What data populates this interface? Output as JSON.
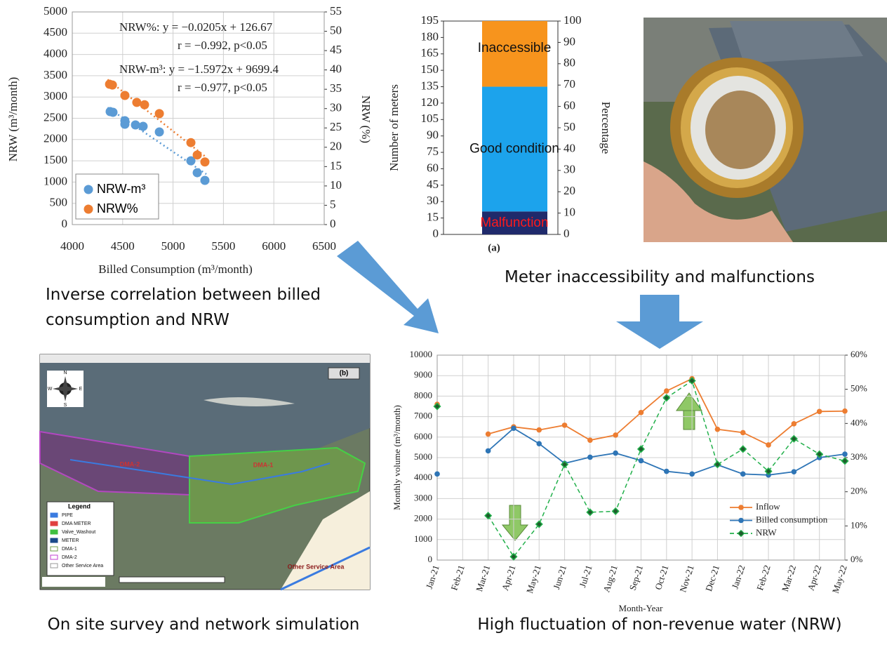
{
  "chart_data": [
    {
      "type": "scatter",
      "xlabel": "Billed Consumption (m³/month)",
      "ylabel": "NRW (m³/month)",
      "y2label": "NRW (%)",
      "xlim": [
        4000,
        6500
      ],
      "xticks": [
        4000,
        4500,
        5000,
        5500,
        6000,
        6500
      ],
      "ylim": [
        0,
        5000
      ],
      "yticks": [
        0,
        500,
        1000,
        1500,
        2000,
        2500,
        3000,
        3500,
        4000,
        4500,
        5000
      ],
      "y2lim": [
        0,
        55
      ],
      "y2ticks": [
        0,
        5,
        10,
        15,
        20,
        25,
        30,
        35,
        40,
        45,
        50,
        55
      ],
      "annotations": [
        "NRW%: y = −0.0205x + 126.67",
        "r = −0.992, p<0.05",
        "NRW-m³: y = −1.5972x + 9699.4",
        "r = −0.977, p<0.05"
      ],
      "grid": true,
      "legend": "lower left",
      "series": [
        {
          "name": "NRW-m³",
          "color": "#5b9bd5",
          "x": [
            4376,
            4404,
            4522,
            4522,
            4627,
            4703,
            4864,
            5177,
            5240,
            5316
          ],
          "values": [
            2657,
            2640,
            2442,
            2360,
            2343,
            2310,
            2178,
            1500,
            1220,
            1040
          ],
          "trend_x": [
            4350,
            5330
          ],
          "trend": [
            2751,
            1186
          ]
        },
        {
          "name": "NRW%",
          "color": "#ed7d31",
          "axis": "y2",
          "x": [
            4370,
            4398,
            4522,
            4640,
            4717,
            4864,
            5177,
            5240,
            5316
          ],
          "values": [
            36.3,
            36.1,
            33.4,
            31.6,
            31.0,
            28.7,
            21.2,
            18.0,
            16.2
          ],
          "trend_x": [
            4350,
            5330
          ],
          "trend": [
            37.5,
            17.4
          ]
        }
      ]
    },
    {
      "type": "stacked_bar",
      "label": "(a)",
      "ylabel": "Number of meters",
      "y2label": "Percentage",
      "ylim": [
        0,
        195
      ],
      "yticks": [
        0,
        15,
        30,
        45,
        60,
        75,
        90,
        105,
        120,
        135,
        150,
        165,
        180,
        195
      ],
      "y2lim": [
        0,
        100
      ],
      "y2ticks": [
        0,
        10,
        20,
        30,
        40,
        50,
        60,
        70,
        80,
        90,
        100
      ],
      "series": [
        {
          "name": "Malfunction",
          "color": "#1f2a6b",
          "label_color": "#ff1a1a",
          "values": [
            21
          ]
        },
        {
          "name": "Good condition",
          "color": "#1ca3ec",
          "label_color": "#111111",
          "values": [
            114
          ]
        },
        {
          "name": "Inaccessible",
          "color": "#f7941d",
          "label_color": "#111111",
          "values": [
            60
          ]
        }
      ]
    },
    {
      "type": "line",
      "xlabel": "Month-Year",
      "ylabel": "Monthly volume (m³/month)",
      "categories": [
        "Jan-21",
        "Feb-21",
        "Mar-21",
        "Apr-21",
        "May-21",
        "Jun-21",
        "Jul-21",
        "Aug-21",
        "Sep-21",
        "Oct-21",
        "Nov-21",
        "Dec-21",
        "Jan-22",
        "Feb-22",
        "Mar-22",
        "Apr-22",
        "May-22"
      ],
      "ylim": [
        0,
        10000
      ],
      "yticks": [
        0,
        1000,
        2000,
        3000,
        4000,
        5000,
        6000,
        7000,
        8000,
        9000,
        10000
      ],
      "y2lim": [
        0,
        60
      ],
      "y2ticks": [
        {
          "value": 0,
          "label": "0%"
        },
        {
          "value": 10,
          "label": "10%"
        },
        {
          "value": 20,
          "label": "20%"
        },
        {
          "value": 30,
          "label": "30%"
        },
        {
          "value": 40,
          "label": "40%"
        },
        {
          "value": 50,
          "label": "50%"
        },
        {
          "value": 60,
          "label": "60%"
        }
      ],
      "grid": true,
      "legend": "lower right",
      "series": [
        {
          "name": "Inflow",
          "color": "#ed7d31",
          "marker": "circle",
          "dash": false,
          "values": [
            7600,
            null,
            6150,
            6500,
            6350,
            6580,
            5850,
            6100,
            7200,
            8250,
            8850,
            6380,
            6220,
            5620,
            6650,
            7250,
            7270
          ]
        },
        {
          "name": "Billed consumption",
          "color": "#2e75b6",
          "marker": "circle",
          "dash": false,
          "values": [
            4200,
            null,
            5330,
            6430,
            5680,
            4720,
            5020,
            5220,
            4850,
            4330,
            4200,
            4650,
            4200,
            4150,
            4310,
            5000,
            5170
          ]
        },
        {
          "name": "NRW",
          "color": "#22b04b",
          "marker": "diamond",
          "dash": true,
          "axis": "y2",
          "values": [
            45,
            null,
            13,
            1,
            10.5,
            28,
            14,
            14.3,
            32.5,
            47.5,
            52.5,
            28,
            32.5,
            26,
            35.5,
            31,
            29
          ]
        }
      ]
    }
  ],
  "captions": [
    "Inverse correlation between billed consumption and NRW",
    "Meter inaccessibility and malfunctions",
    "On site survey and network simulation",
    "High fluctuation of non-revenue water (NRW)"
  ],
  "map": {
    "label": "(b)",
    "compass": [
      "N",
      "S",
      "W",
      "E"
    ],
    "zones": [
      "DMA-2",
      "DMA-1",
      "Other Service Area"
    ],
    "legend_title": "Legend",
    "legend": [
      "PIPE",
      "DMA METER",
      "Valve_Washout",
      "METER",
      "DMA-1",
      "DMA-2",
      "Other Service Area"
    ]
  }
}
